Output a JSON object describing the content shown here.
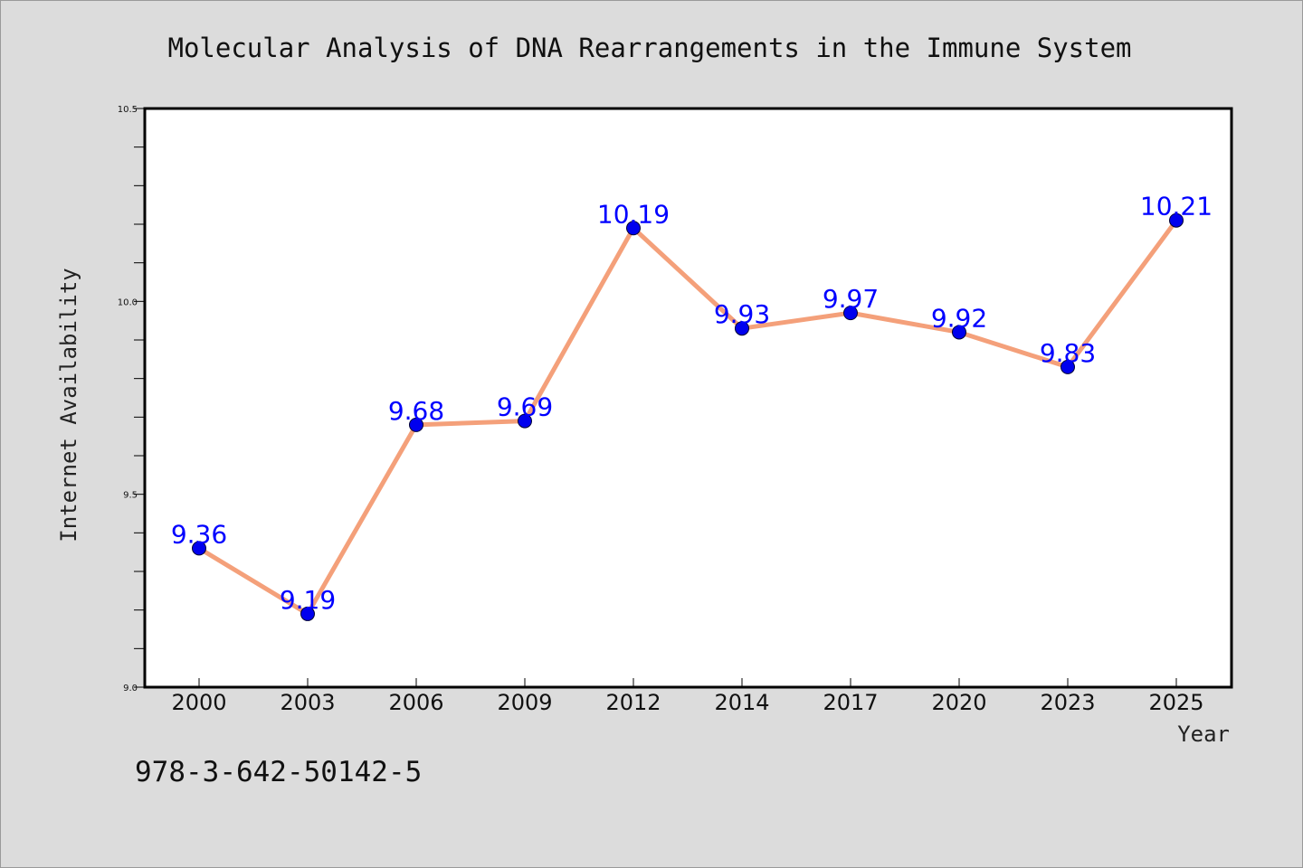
{
  "page": {
    "background": "#dcdcdc",
    "footer_text": "978-3-642-50142-5"
  },
  "chart_data": {
    "type": "line",
    "title": "Molecular Analysis of DNA Rearrangements in the Immune System",
    "xlabel": "Year",
    "ylabel": "Internet Availability",
    "categories": [
      "2000",
      "2003",
      "2006",
      "2009",
      "2012",
      "2014",
      "2017",
      "2020",
      "2023",
      "2025"
    ],
    "series": [
      {
        "values": [
          9.36,
          9.19,
          9.68,
          9.69,
          10.19,
          9.93,
          9.97,
          9.92,
          9.83,
          10.21
        ],
        "line_color": "#f4a07a",
        "marker_color": "#0000ee",
        "label_color": "#0000ff"
      }
    ],
    "data_labels": [
      "9.36",
      "9.19",
      "9.68",
      "9.69",
      "10.19",
      "9.93",
      "9.97",
      "9.92",
      "9.83",
      "10.21"
    ],
    "ylim": [
      9.0,
      10.5
    ],
    "yticks": [
      "9.0",
      "9.5",
      "10.0",
      "10.5"
    ],
    "ytick_values": [
      9.0,
      9.5,
      10.0,
      10.5
    ],
    "minor_ytick_step": 0.1,
    "grid": false,
    "legend": "none",
    "plot_background": "#ffffff"
  }
}
